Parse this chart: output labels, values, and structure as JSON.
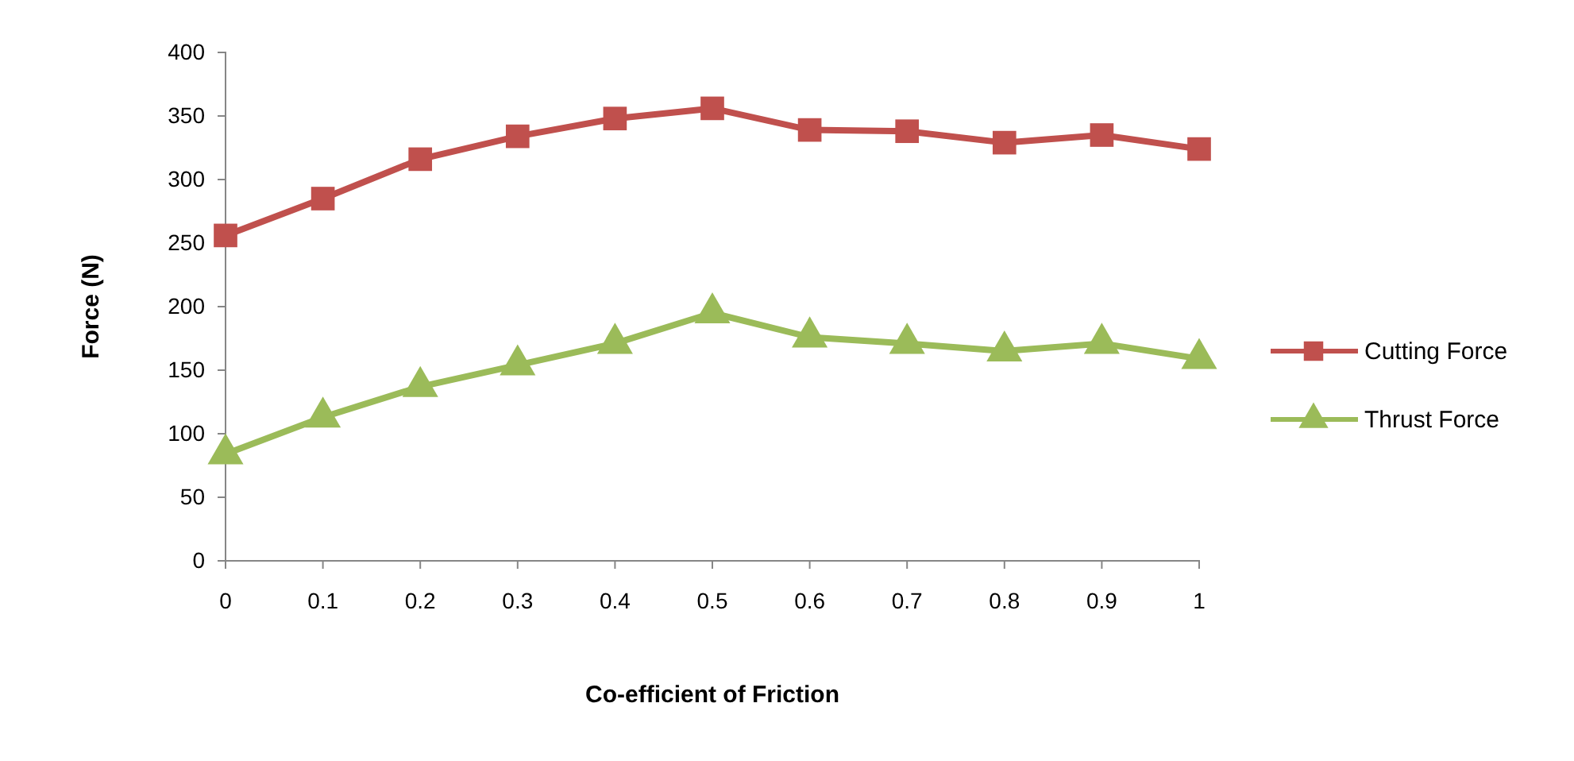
{
  "chart_data": {
    "type": "line",
    "xlabel": "Co-efficient of Friction",
    "ylabel": "Force (N)",
    "categories": [
      "0",
      "0.1",
      "0.2",
      "0.3",
      "0.4",
      "0.5",
      "0.6",
      "0.7",
      "0.8",
      "0.9",
      "1"
    ],
    "series": [
      {
        "name": "Cutting Force",
        "color": "#c0504d",
        "marker": "square",
        "values": [
          256,
          285,
          316,
          334,
          348,
          356,
          339,
          338,
          329,
          335,
          324
        ]
      },
      {
        "name": "Thrust Force",
        "color": "#9bbb59",
        "marker": "triangle",
        "values": [
          84,
          113,
          137,
          154,
          171,
          195,
          176,
          171,
          165,
          171,
          159
        ]
      }
    ],
    "ylim": [
      0,
      400
    ],
    "yticks": [
      0,
      50,
      100,
      150,
      200,
      250,
      300,
      350,
      400
    ],
    "grid": false,
    "legend": "right",
    "line_style": "solid"
  }
}
